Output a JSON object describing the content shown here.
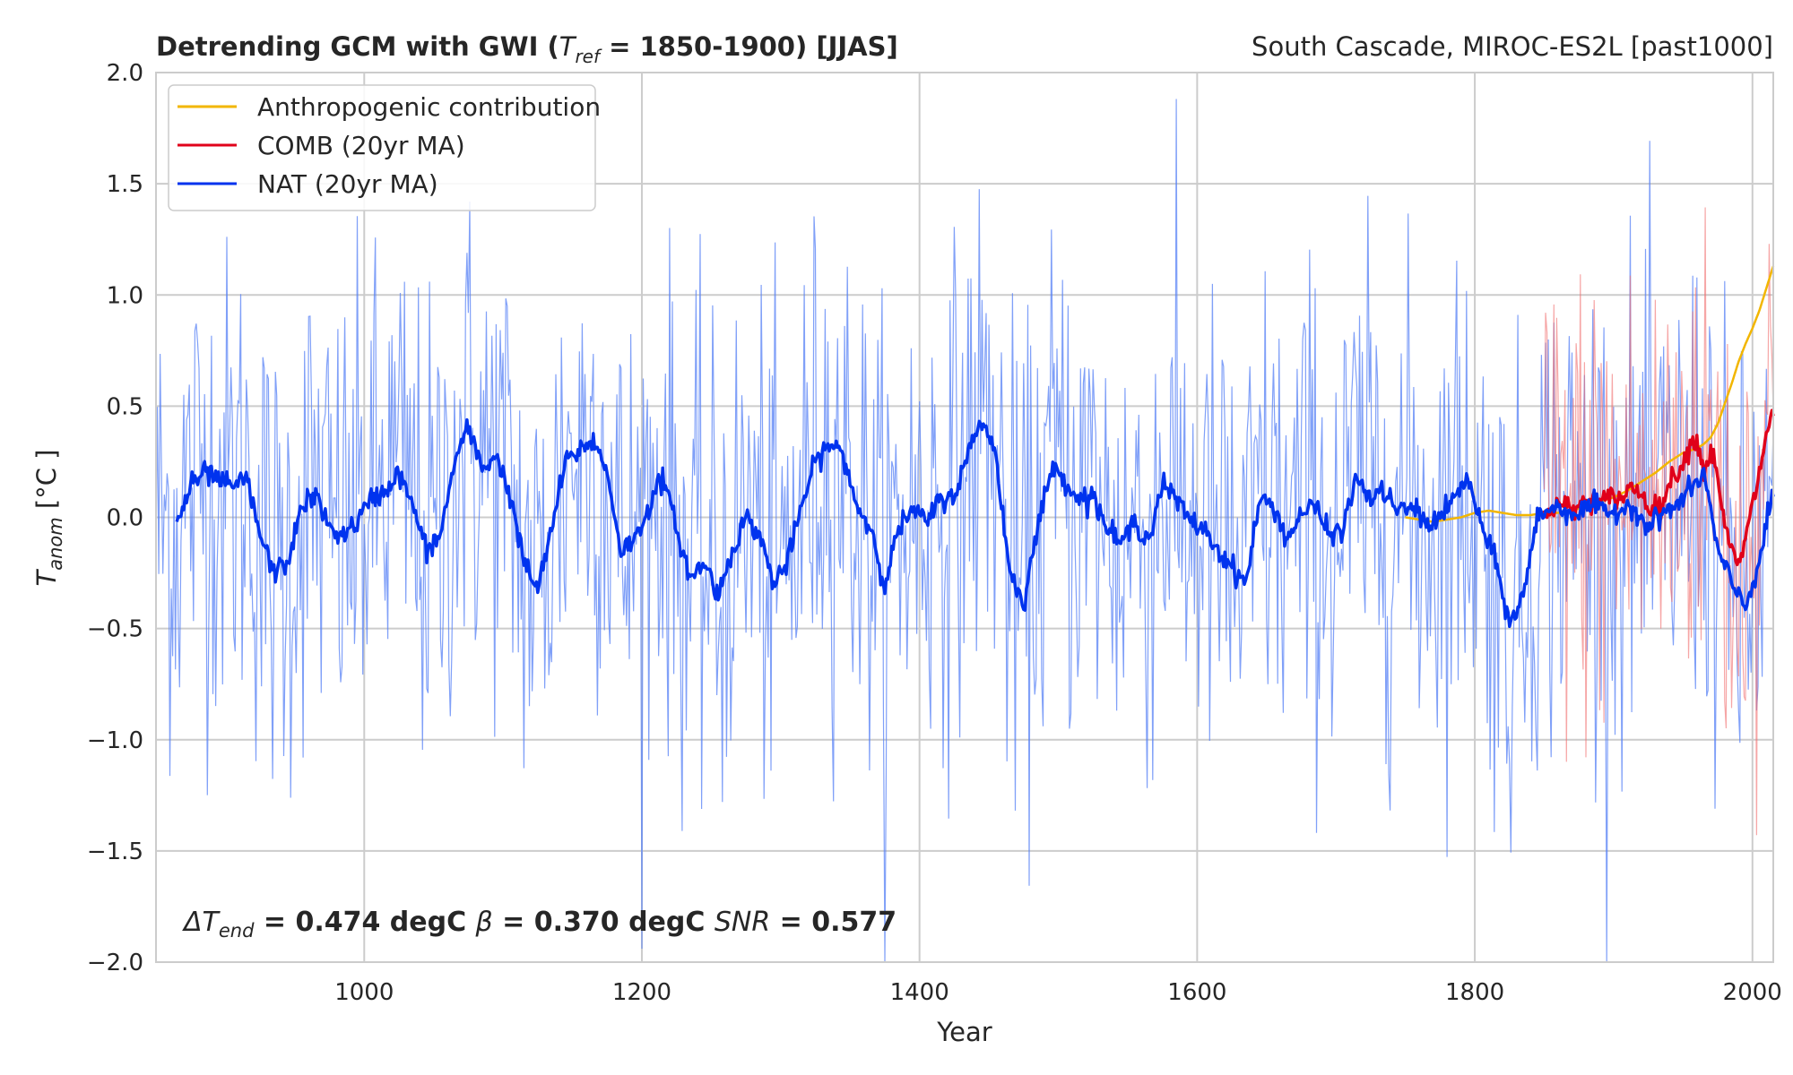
{
  "chart_data": {
    "type": "line",
    "title": "Detrending GCM with GWI (T_ref = 1850-1900) [JJAS]",
    "title_parts": {
      "prefix": "Detrending GCM with GWI (",
      "t_sym": "T",
      "t_sub": "ref",
      "suffix": " = 1850-1900) [JJAS]"
    },
    "subtitle_right": "South Cascade, MIROC-ES2L [past1000]",
    "xlabel": "Year",
    "ylabel_parts": {
      "sym": "T",
      "sub": "anom",
      "unit": " [°C ]"
    },
    "xlim": [
      850,
      2015
    ],
    "ylim": [
      -2.0,
      2.0
    ],
    "xticks": [
      1000,
      1200,
      1400,
      1600,
      1800,
      2000
    ],
    "yticks": [
      2.0,
      1.5,
      1.0,
      0.5,
      0.0,
      -0.5,
      -1.0,
      -1.5,
      -2.0
    ],
    "ytick_labels": [
      "2.0",
      "1.5",
      "1.0",
      "0.5",
      "0.0",
      "−0.5",
      "−1.0",
      "−1.5",
      "−2.0"
    ],
    "grid": true,
    "legend_position": "top-left",
    "colors": {
      "anthropogenic": "#f2b600",
      "comb": "#e0001a",
      "nat": "#0033ee",
      "nat_raw": "#5580f5",
      "comb_raw": "#f06a6a",
      "grid": "#cccccc"
    },
    "series": [
      {
        "name": "Anthropogenic contribution",
        "key": "anthropogenic",
        "x": [
          1750,
          1760,
          1770,
          1780,
          1790,
          1800,
          1810,
          1820,
          1830,
          1840,
          1850,
          1860,
          1870,
          1880,
          1890,
          1900,
          1910,
          1920,
          1930,
          1940,
          1950,
          1955,
          1960,
          1965,
          1970,
          1975,
          1980,
          1985,
          1990,
          1995,
          2000,
          2005,
          2010,
          2015
        ],
        "y": [
          0.0,
          -0.01,
          -0.02,
          -0.01,
          0.0,
          0.02,
          0.03,
          0.02,
          0.01,
          0.01,
          0.02,
          0.02,
          0.03,
          0.05,
          0.07,
          0.09,
          0.12,
          0.16,
          0.2,
          0.25,
          0.29,
          0.3,
          0.31,
          0.33,
          0.36,
          0.42,
          0.51,
          0.6,
          0.7,
          0.78,
          0.85,
          0.93,
          1.03,
          1.13
        ]
      },
      {
        "name": "COMB (20yr MA)",
        "key": "comb",
        "x": [
          1850,
          1855,
          1860,
          1865,
          1870,
          1875,
          1880,
          1885,
          1890,
          1895,
          1900,
          1905,
          1910,
          1915,
          1920,
          1925,
          1930,
          1935,
          1940,
          1945,
          1950,
          1955,
          1960,
          1965,
          1970,
          1975,
          1980,
          1985,
          1990,
          1995,
          2000,
          2005,
          2010,
          2015
        ],
        "y": [
          0.02,
          0.04,
          0.06,
          0.05,
          0.03,
          0.05,
          0.07,
          0.09,
          0.06,
          0.08,
          0.1,
          0.08,
          0.12,
          0.14,
          0.1,
          0.06,
          0.04,
          0.06,
          0.15,
          0.2,
          0.25,
          0.32,
          0.36,
          0.2,
          0.3,
          0.2,
          -0.05,
          -0.15,
          -0.22,
          -0.1,
          0.05,
          0.2,
          0.38,
          0.47
        ]
      },
      {
        "name": "NAT (20yr MA)",
        "key": "nat",
        "x": [
          865,
          875,
          885,
          895,
          905,
          915,
          925,
          935,
          945,
          955,
          965,
          975,
          985,
          995,
          1005,
          1015,
          1025,
          1035,
          1045,
          1055,
          1065,
          1075,
          1085,
          1095,
          1105,
          1115,
          1125,
          1135,
          1145,
          1155,
          1165,
          1175,
          1185,
          1195,
          1205,
          1215,
          1225,
          1235,
          1245,
          1255,
          1265,
          1275,
          1285,
          1295,
          1305,
          1315,
          1325,
          1335,
          1345,
          1355,
          1365,
          1375,
          1385,
          1395,
          1405,
          1415,
          1425,
          1435,
          1445,
          1455,
          1465,
          1475,
          1485,
          1495,
          1505,
          1515,
          1525,
          1535,
          1545,
          1555,
          1565,
          1575,
          1585,
          1595,
          1605,
          1615,
          1625,
          1635,
          1645,
          1655,
          1665,
          1675,
          1685,
          1695,
          1705,
          1715,
          1725,
          1735,
          1745,
          1755,
          1765,
          1775,
          1785,
          1795,
          1805,
          1815,
          1825,
          1835,
          1845,
          1855,
          1865,
          1875,
          1885,
          1895,
          1905,
          1915,
          1925,
          1935,
          1945,
          1955,
          1965,
          1975,
          1985,
          1995,
          2005,
          2015
        ],
        "y": [
          -0.03,
          0.14,
          0.2,
          0.17,
          0.13,
          0.18,
          -0.08,
          -0.25,
          -0.2,
          0.05,
          0.1,
          -0.05,
          -0.08,
          -0.02,
          0.08,
          0.12,
          0.2,
          0.05,
          -0.15,
          -0.08,
          0.25,
          0.4,
          0.22,
          0.28,
          0.1,
          -0.2,
          -0.33,
          -0.05,
          0.25,
          0.3,
          0.35,
          0.2,
          -0.15,
          -0.1,
          0.05,
          0.18,
          -0.05,
          -0.28,
          -0.2,
          -0.35,
          -0.15,
          0.0,
          -0.08,
          -0.3,
          -0.2,
          0.05,
          0.25,
          0.33,
          0.28,
          0.05,
          -0.05,
          -0.3,
          -0.05,
          0.03,
          -0.02,
          0.08,
          0.1,
          0.28,
          0.45,
          0.28,
          -0.25,
          -0.38,
          -0.05,
          0.22,
          0.17,
          0.08,
          0.1,
          -0.05,
          -0.12,
          -0.02,
          -0.1,
          0.15,
          0.08,
          -0.02,
          -0.05,
          -0.15,
          -0.22,
          -0.3,
          0.08,
          0.05,
          -0.1,
          0.02,
          0.05,
          -0.08,
          -0.05,
          0.18,
          0.08,
          0.12,
          0.02,
          0.05,
          -0.03,
          0.0,
          0.08,
          0.18,
          -0.05,
          -0.2,
          -0.48,
          -0.35,
          0.0,
          0.05,
          0.03,
          0.02,
          0.06,
          0.01,
          0.04,
          0.05,
          -0.05,
          0.02,
          0.05,
          0.12,
          0.2,
          -0.15,
          -0.3,
          -0.4,
          -0.2,
          0.12
        ]
      }
    ],
    "annotation": {
      "delta_label": "ΔT",
      "delta_sub": "end",
      "delta_value": " = 0.474 degC ",
      "beta_label": "β",
      "beta_value": " = 0.370 degC ",
      "snr_label": "SNR",
      "snr_value": " =  0.577"
    }
  }
}
